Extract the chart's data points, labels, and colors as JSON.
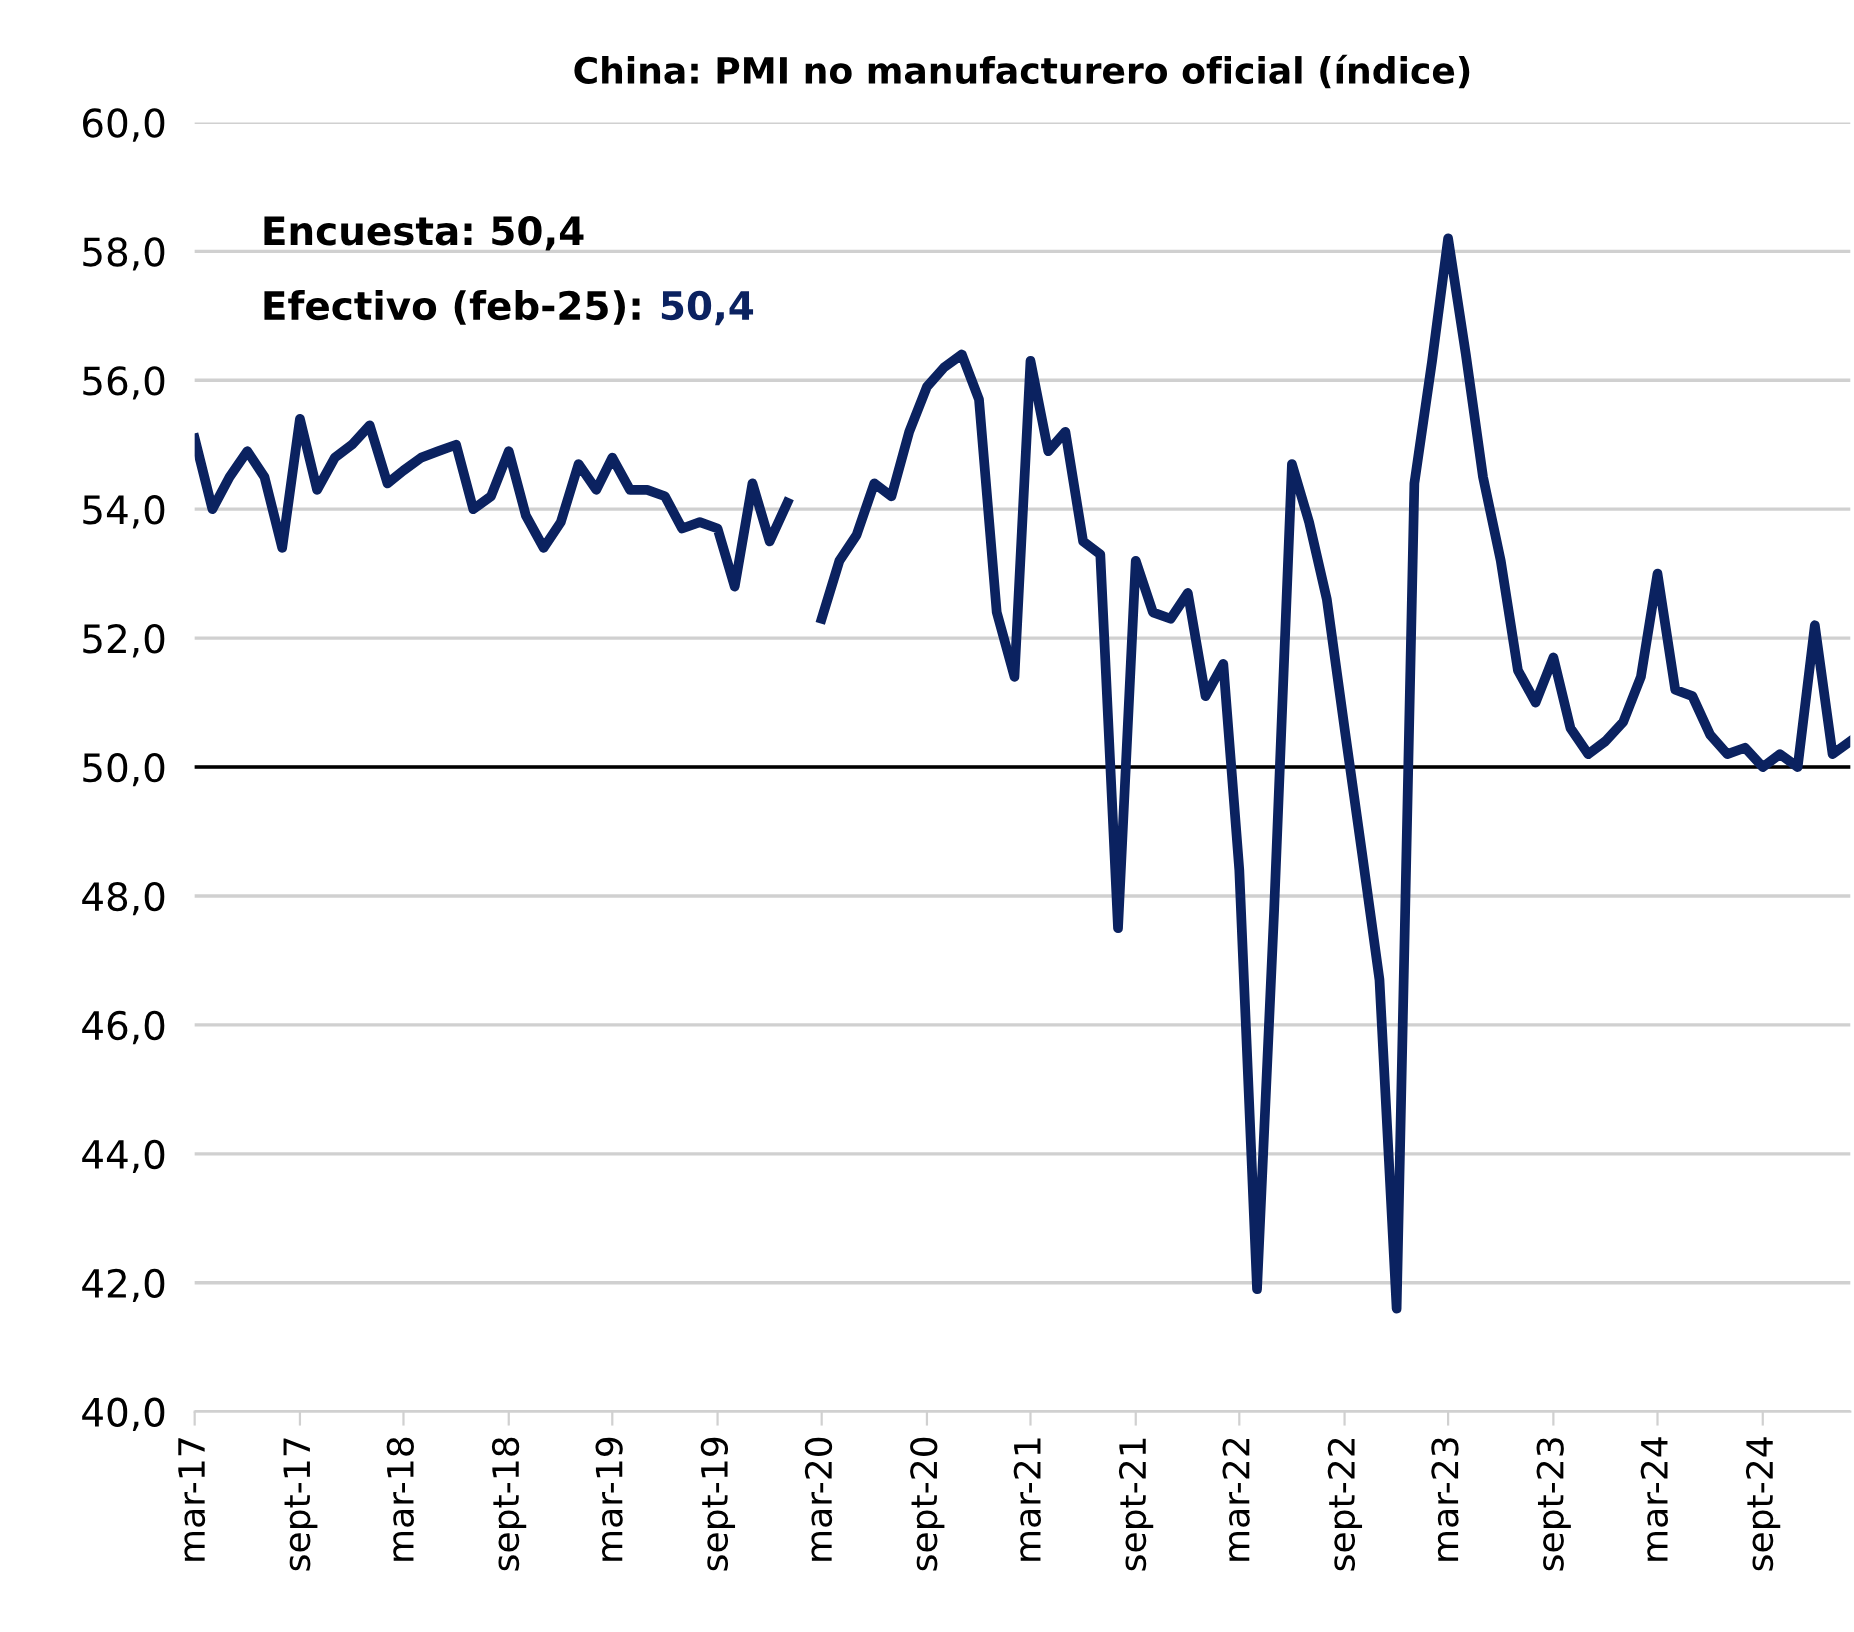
{
  "chart_data": {
    "type": "line",
    "title": "China: PMI no manufacturero oficial (índice)",
    "annotations": [
      "Encuesta: 50,4",
      "Efectivo (feb-25): 50,4"
    ],
    "x": [
      "2017-03",
      "2017-04",
      "2017-05",
      "2017-06",
      "2017-07",
      "2017-08",
      "2017-09",
      "2017-10",
      "2017-11",
      "2017-12",
      "2018-01",
      "2018-02",
      "2018-03",
      "2018-04",
      "2018-05",
      "2018-06",
      "2018-07",
      "2018-08",
      "2018-09",
      "2018-10",
      "2018-11",
      "2018-12",
      "2019-01",
      "2019-02",
      "2019-03",
      "2019-04",
      "2019-05",
      "2019-06",
      "2019-07",
      "2019-08",
      "2019-09",
      "2019-10",
      "2019-11",
      "2019-12",
      "2020-01",
      "2020-02",
      "2020-03",
      "2020-04",
      "2020-05",
      "2020-06",
      "2020-07",
      "2020-08",
      "2020-09",
      "2020-10",
      "2020-11",
      "2020-12",
      "2021-01",
      "2021-02",
      "2021-03",
      "2021-04",
      "2021-05",
      "2021-06",
      "2021-07",
      "2021-08",
      "2021-09",
      "2021-10",
      "2021-11",
      "2021-12",
      "2022-01",
      "2022-02",
      "2022-03",
      "2022-04",
      "2022-05",
      "2022-06",
      "2022-07",
      "2022-08",
      "2022-09",
      "2022-10",
      "2022-11",
      "2022-12",
      "2023-01",
      "2023-02",
      "2023-03",
      "2023-04",
      "2023-05",
      "2023-06",
      "2023-07",
      "2023-08",
      "2023-09",
      "2023-10",
      "2023-11",
      "2023-12",
      "2024-01",
      "2024-02",
      "2024-03",
      "2024-04",
      "2024-05",
      "2024-06",
      "2024-07",
      "2024-08",
      "2024-09",
      "2024-10",
      "2024-11",
      "2024-12",
      "2025-01",
      "2025-02"
    ],
    "series": [
      {
        "color": "#0b2260",
        "values": [
          55.1,
          54.0,
          54.5,
          54.9,
          54.5,
          53.4,
          55.4,
          54.3,
          54.8,
          55.0,
          55.3,
          54.4,
          54.6,
          54.8,
          54.9,
          55.0,
          54.0,
          54.2,
          54.9,
          53.9,
          53.4,
          53.8,
          54.7,
          54.3,
          54.8,
          54.3,
          54.3,
          54.2,
          53.7,
          53.8,
          53.7,
          52.8,
          54.4,
          53.5,
          54.1,
          null,
          52.3,
          53.2,
          53.6,
          54.4,
          54.2,
          55.2,
          55.9,
          56.2,
          56.4,
          55.7,
          52.4,
          51.4,
          56.3,
          54.9,
          55.2,
          53.5,
          53.3,
          47.5,
          53.2,
          52.4,
          52.3,
          52.7,
          51.1,
          51.6,
          48.4,
          41.9,
          47.8,
          54.7,
          53.8,
          52.6,
          50.6,
          48.7,
          46.7,
          41.6,
          54.4,
          56.3,
          58.2,
          56.4,
          54.5,
          53.2,
          51.5,
          51.0,
          51.7,
          50.6,
          50.2,
          50.4,
          50.7,
          51.4,
          53.0,
          51.2,
          51.1,
          50.5,
          50.2,
          50.3,
          50.0,
          50.2,
          50.0,
          52.2,
          50.2,
          50.4
        ]
      }
    ],
    "xlim": [
      "2017-03",
      "2025-02"
    ],
    "xticks": [
      {
        "value": "2017-03",
        "label": "mar-17"
      },
      {
        "value": "2017-09",
        "label": "sept-17"
      },
      {
        "value": "2018-03",
        "label": "mar-18"
      },
      {
        "value": "2018-09",
        "label": "sept-18"
      },
      {
        "value": "2019-03",
        "label": "mar-19"
      },
      {
        "value": "2019-09",
        "label": "sept-19"
      },
      {
        "value": "2020-03",
        "label": "mar-20"
      },
      {
        "value": "2020-09",
        "label": "sept-20"
      },
      {
        "value": "2021-03",
        "label": "mar-21"
      },
      {
        "value": "2021-09",
        "label": "sept-21"
      },
      {
        "value": "2022-03",
        "label": "mar-22"
      },
      {
        "value": "2022-09",
        "label": "sept-22"
      },
      {
        "value": "2023-03",
        "label": "mar-23"
      },
      {
        "value": "2023-09",
        "label": "sept-23"
      },
      {
        "value": "2024-03",
        "label": "mar-24"
      },
      {
        "value": "2024-09",
        "label": "sept-24"
      }
    ],
    "ylim": [
      40,
      60
    ],
    "yticks": [
      {
        "value": 40,
        "label": "40,0"
      },
      {
        "value": 42,
        "label": "42,0"
      },
      {
        "value": 44,
        "label": "44,0"
      },
      {
        "value": 46,
        "label": "46,0"
      },
      {
        "value": 48,
        "label": "48,0"
      },
      {
        "value": 50,
        "label": "50,0"
      },
      {
        "value": 52,
        "label": "52,0"
      },
      {
        "value": 54,
        "label": "54,0"
      },
      {
        "value": 56,
        "label": "56,0"
      },
      {
        "value": 58,
        "label": "58,0"
      },
      {
        "value": 60,
        "label": "60,0"
      }
    ],
    "ref_lines": [
      {
        "axis": "y",
        "value": 50,
        "color": "#000000"
      }
    ],
    "grid": "y",
    "legend": false,
    "marker": "none",
    "line_style": "solid"
  }
}
